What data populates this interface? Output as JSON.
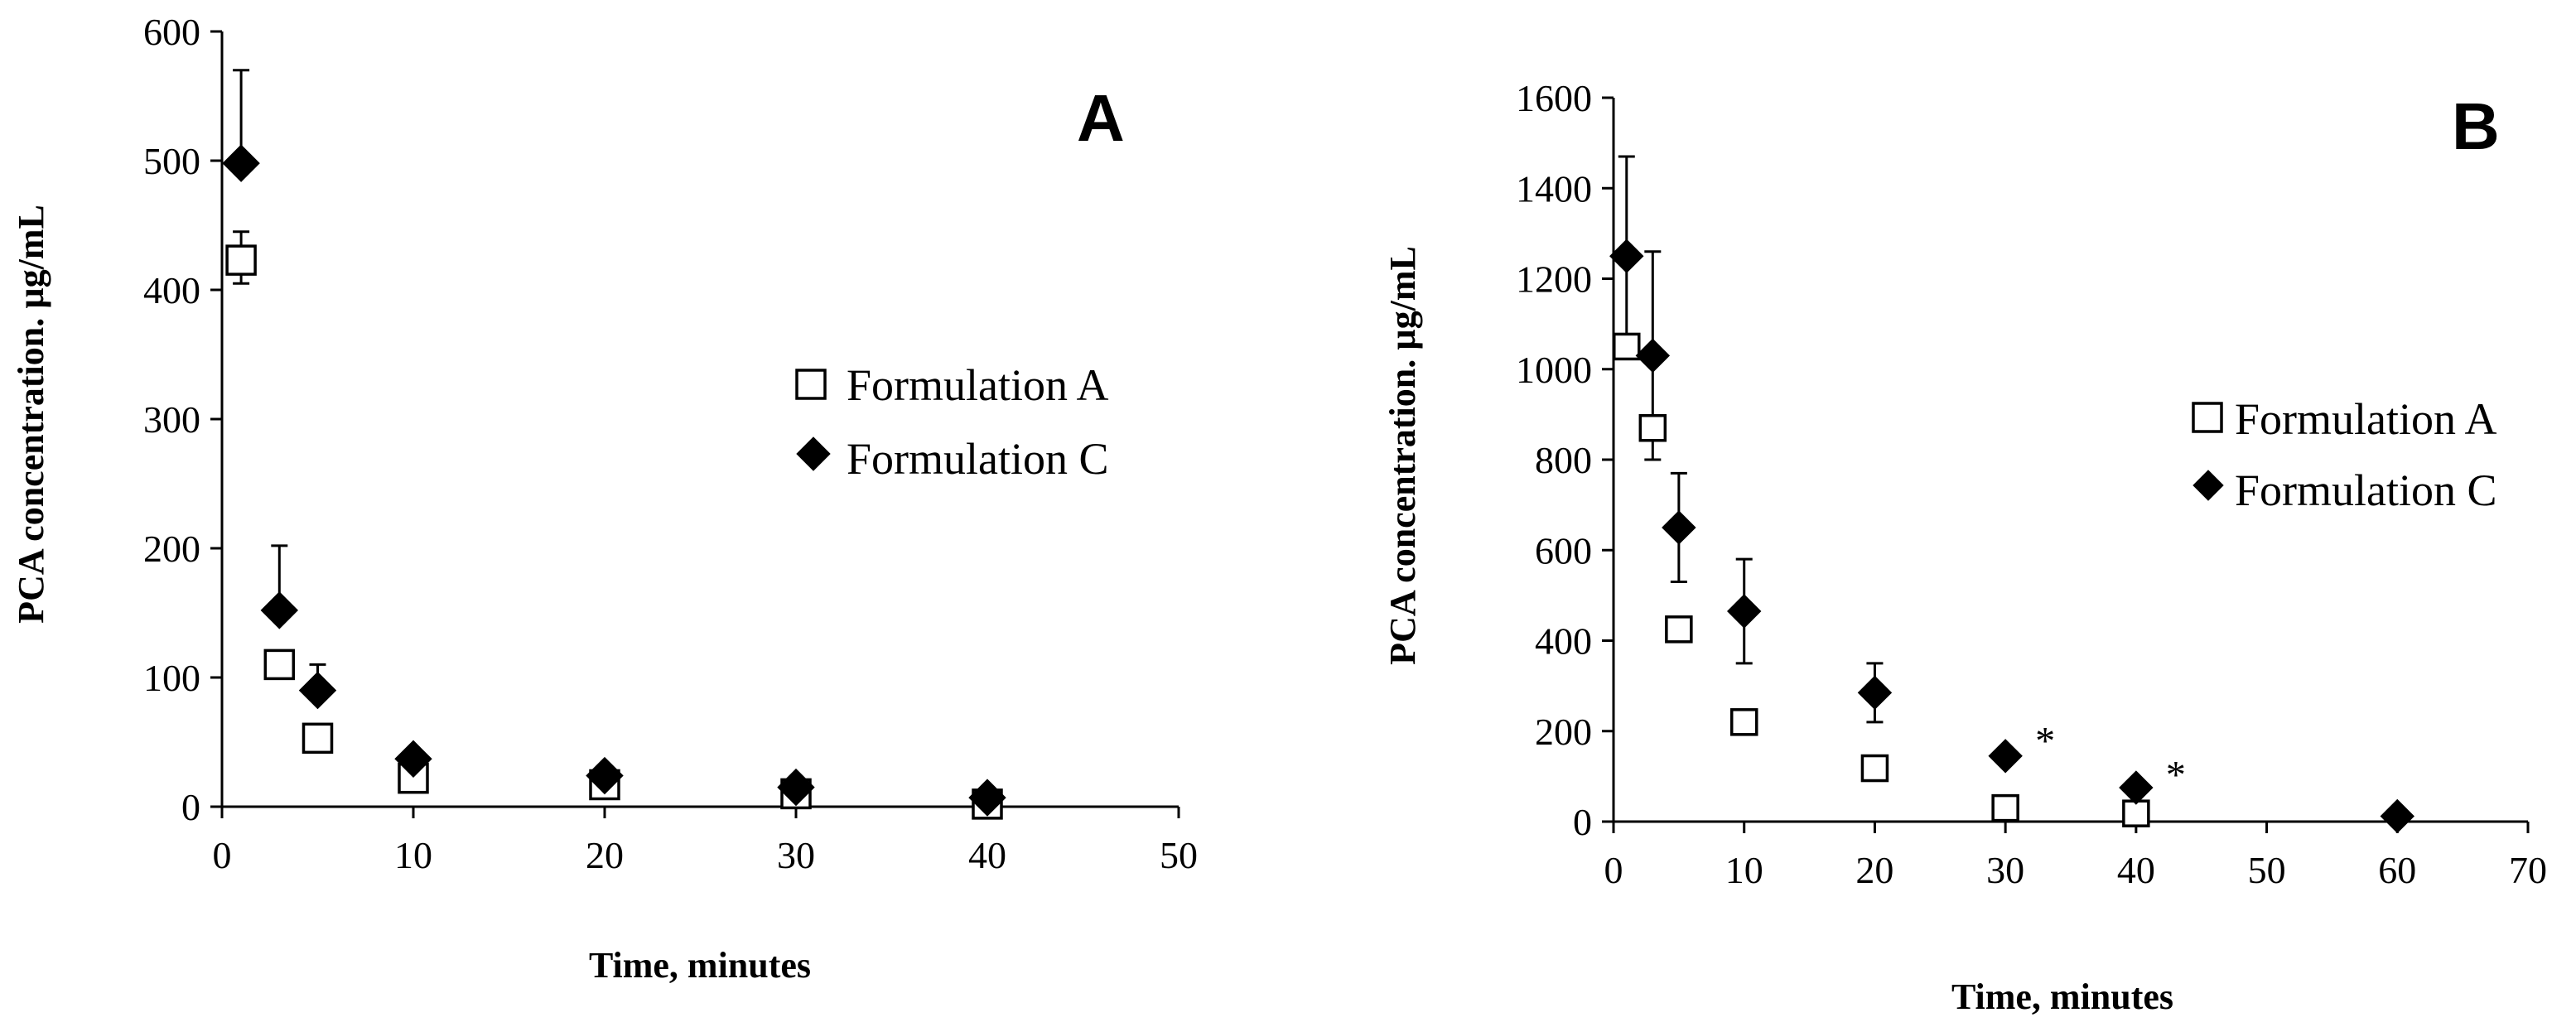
{
  "chart_data": [
    {
      "type": "scatter",
      "panel_label": "A",
      "xlabel": "Time, minutes",
      "ylabel": "PCA concentration. µg/mL",
      "xlim": [
        0,
        50
      ],
      "ylim": [
        0,
        600
      ],
      "x_ticks": [
        "0",
        "10",
        "20",
        "30",
        "40",
        "50"
      ],
      "y_ticks": [
        "0",
        "100",
        "200",
        "300",
        "400",
        "500",
        "600"
      ],
      "legend_position": "right",
      "series": [
        {
          "name": "Formulation A",
          "marker": "open-square",
          "x": [
            1,
            3,
            5,
            10,
            20,
            30,
            40
          ],
          "y": [
            423,
            110,
            53,
            22,
            17,
            10,
            2
          ],
          "err_up": [
            22,
            10,
            6,
            4,
            3,
            3,
            2
          ],
          "err_down": [
            18,
            8,
            6,
            4,
            3,
            3,
            2
          ]
        },
        {
          "name": "Formulation C",
          "marker": "filled-diamond",
          "x": [
            1,
            3,
            5,
            10,
            20,
            30,
            40
          ],
          "y": [
            498,
            152,
            90,
            37,
            24,
            15,
            7
          ],
          "err_up": [
            72,
            50,
            20,
            6,
            4,
            3,
            3
          ],
          "err_down": [
            0,
            0,
            0,
            0,
            0,
            0,
            0
          ]
        }
      ]
    },
    {
      "type": "scatter",
      "panel_label": "B",
      "xlabel": "Time, minutes",
      "ylabel": "PCA concentration. µg/mL",
      "xlim": [
        0,
        70
      ],
      "ylim": [
        0,
        1600
      ],
      "x_ticks": [
        "0",
        "10",
        "20",
        "30",
        "40",
        "50",
        "60",
        "70"
      ],
      "y_ticks": [
        "0",
        "200",
        "400",
        "600",
        "800",
        "1000",
        "1200",
        "1400",
        "1600"
      ],
      "legend_position": "right",
      "significance_mark": "*",
      "significance_x": [
        30,
        40
      ],
      "series": [
        {
          "name": "Formulation A",
          "marker": "open-square",
          "x": [
            1,
            3,
            5,
            10,
            20,
            30,
            40
          ],
          "y": [
            1050,
            870,
            425,
            220,
            118,
            30,
            18
          ],
          "err_up": [
            20,
            25,
            15,
            10,
            8,
            6,
            5
          ],
          "err_down": [
            20,
            25,
            15,
            10,
            8,
            6,
            5
          ]
        },
        {
          "name": "Formulation C",
          "marker": "filled-diamond",
          "x": [
            1,
            3,
            5,
            10,
            20,
            30,
            40,
            60
          ],
          "y": [
            1250,
            1030,
            650,
            465,
            285,
            145,
            75,
            12
          ],
          "err_up": [
            220,
            230,
            120,
            115,
            65,
            15,
            10,
            0
          ],
          "err_down": [
            220,
            230,
            120,
            115,
            65,
            15,
            10,
            0
          ]
        }
      ]
    }
  ]
}
